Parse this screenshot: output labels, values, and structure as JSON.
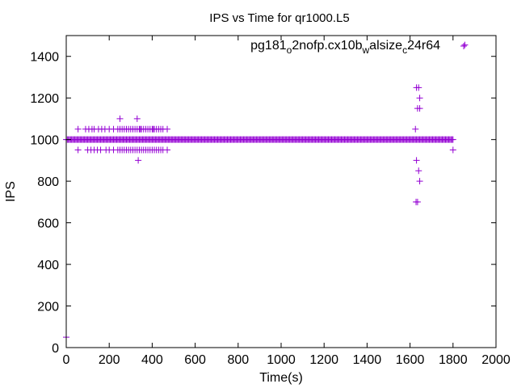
{
  "chart_data": {
    "type": "scatter",
    "title": "IPS vs Time for qr1000.L5",
    "xlabel": "Time(s)",
    "ylabel": "IPS",
    "xlim": [
      0,
      2000
    ],
    "ylim": [
      0,
      1500
    ],
    "xticks": [
      0,
      200,
      400,
      600,
      800,
      1000,
      1200,
      1400,
      1600,
      1800,
      2000
    ],
    "yticks": [
      0,
      200,
      400,
      600,
      800,
      1000,
      1200,
      1400
    ],
    "grid": false,
    "legend_position": "top-right",
    "marker": "plus",
    "colors": {
      "series": "#9400d3",
      "axis": "#000000"
    },
    "series": [
      {
        "name": "pg181_o2nofp.cx10b_walsize_c24r64",
        "legend_parts": [
          {
            "text": "pg181",
            "sub": false
          },
          {
            "text": "o",
            "sub": true
          },
          {
            "text": "2nofp.cx10b",
            "sub": false
          },
          {
            "text": "w",
            "sub": true
          },
          {
            "text": "alsize",
            "sub": false
          },
          {
            "text": "c",
            "sub": true
          },
          {
            "text": "24r64",
            "sub": false
          }
        ],
        "dense_run": {
          "x_start": 0,
          "x_end": 1800,
          "step": 5,
          "y": 1000
        },
        "points": [
          [
            0,
            50
          ],
          [
            55,
            1050
          ],
          [
            90,
            1050
          ],
          [
            105,
            1050
          ],
          [
            120,
            1050
          ],
          [
            130,
            1050
          ],
          [
            150,
            1050
          ],
          [
            165,
            1050
          ],
          [
            180,
            1050
          ],
          [
            200,
            1050
          ],
          [
            220,
            1050
          ],
          [
            240,
            1050
          ],
          [
            250,
            1050
          ],
          [
            260,
            1050
          ],
          [
            270,
            1050
          ],
          [
            280,
            1050
          ],
          [
            290,
            1050
          ],
          [
            300,
            1050
          ],
          [
            310,
            1050
          ],
          [
            320,
            1050
          ],
          [
            330,
            1050
          ],
          [
            340,
            1050
          ],
          [
            345,
            1050
          ],
          [
            350,
            1050
          ],
          [
            360,
            1050
          ],
          [
            370,
            1050
          ],
          [
            380,
            1050
          ],
          [
            390,
            1050
          ],
          [
            400,
            1050
          ],
          [
            405,
            1050
          ],
          [
            410,
            1050
          ],
          [
            420,
            1050
          ],
          [
            430,
            1050
          ],
          [
            440,
            1050
          ],
          [
            450,
            1050
          ],
          [
            470,
            1050
          ],
          [
            55,
            950
          ],
          [
            100,
            950
          ],
          [
            115,
            950
          ],
          [
            130,
            950
          ],
          [
            145,
            950
          ],
          [
            160,
            950
          ],
          [
            185,
            950
          ],
          [
            200,
            950
          ],
          [
            220,
            950
          ],
          [
            240,
            950
          ],
          [
            250,
            950
          ],
          [
            260,
            950
          ],
          [
            270,
            950
          ],
          [
            280,
            950
          ],
          [
            290,
            950
          ],
          [
            300,
            950
          ],
          [
            310,
            950
          ],
          [
            320,
            950
          ],
          [
            330,
            950
          ],
          [
            340,
            950
          ],
          [
            350,
            950
          ],
          [
            360,
            950
          ],
          [
            370,
            950
          ],
          [
            380,
            950
          ],
          [
            390,
            950
          ],
          [
            400,
            950
          ],
          [
            410,
            950
          ],
          [
            420,
            950
          ],
          [
            430,
            950
          ],
          [
            440,
            950
          ],
          [
            450,
            950
          ],
          [
            470,
            950
          ],
          [
            250,
            1100
          ],
          [
            330,
            1100
          ],
          [
            335,
            900
          ],
          [
            1625,
            1050
          ],
          [
            1630,
            1250
          ],
          [
            1640,
            1250
          ],
          [
            1635,
            1150
          ],
          [
            1645,
            1150
          ],
          [
            1645,
            1200
          ],
          [
            1630,
            900
          ],
          [
            1640,
            850
          ],
          [
            1645,
            800
          ],
          [
            1628,
            700
          ],
          [
            1635,
            700
          ],
          [
            1800,
            950
          ],
          [
            1855,
            1455
          ]
        ]
      }
    ]
  }
}
